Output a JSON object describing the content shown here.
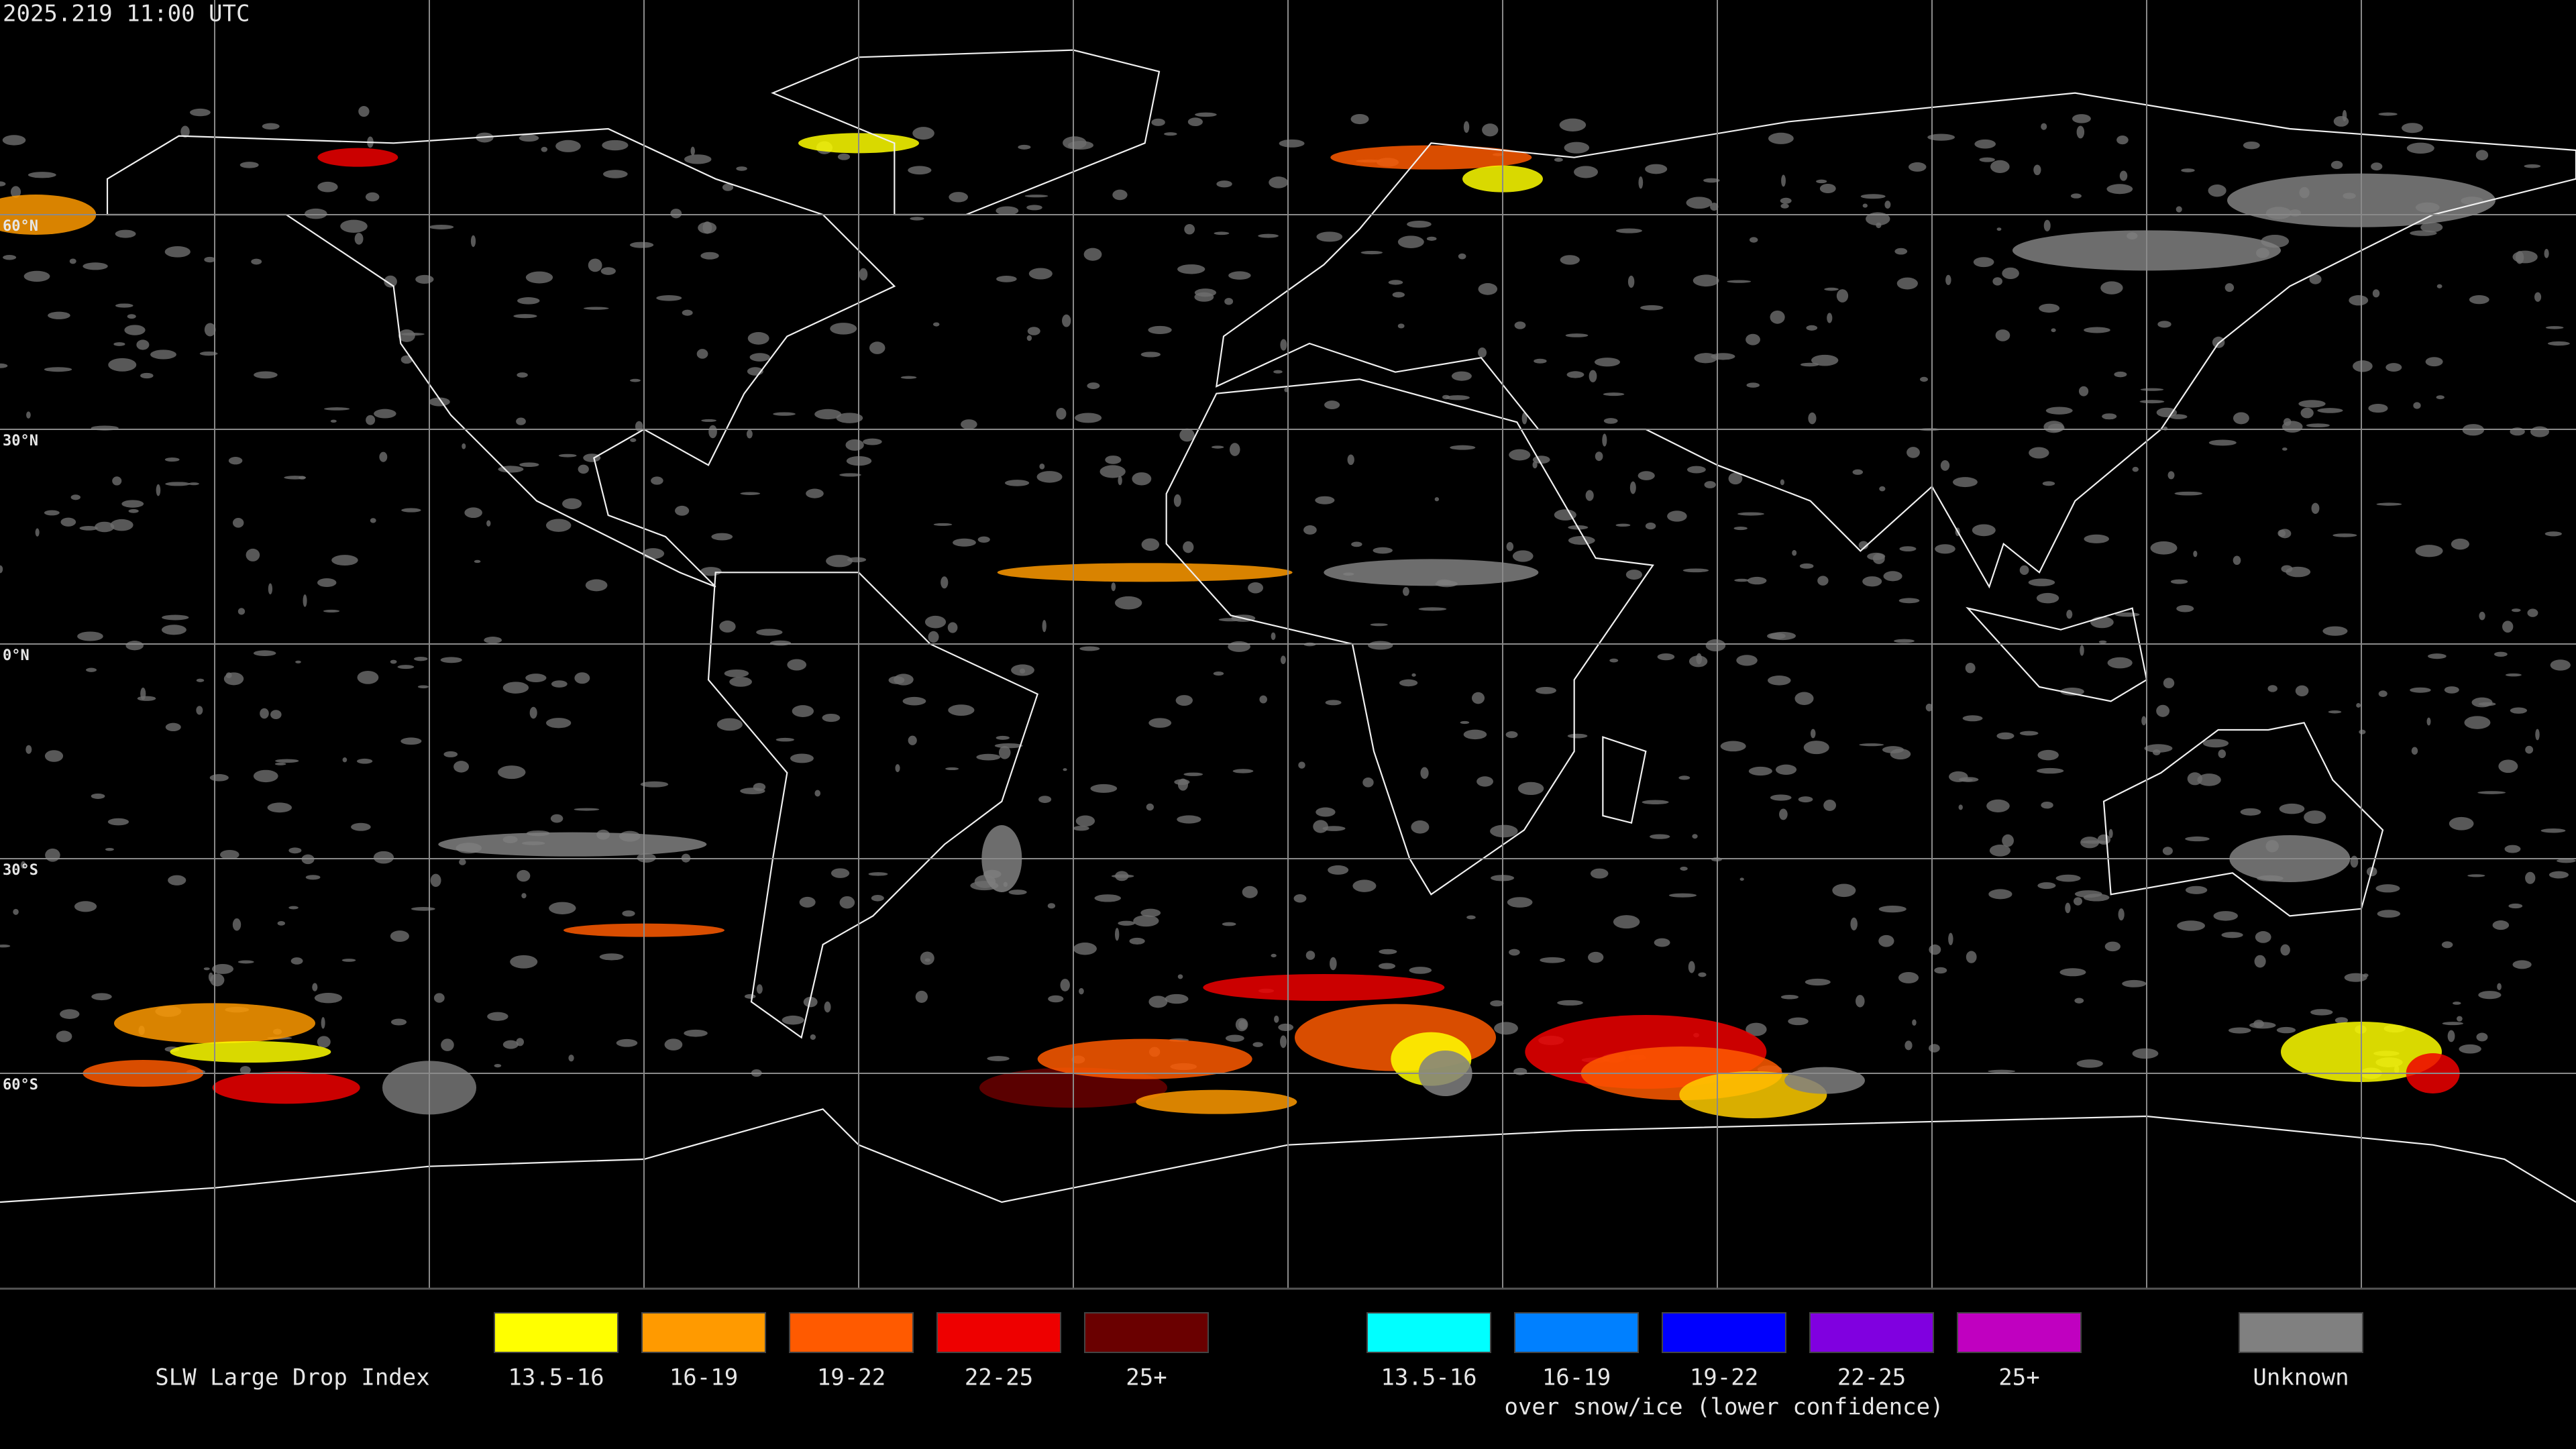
{
  "timestamp": "2025.219 11:00 UTC",
  "latitude_labels": [
    "60°N",
    "30°N",
    "0°N",
    "30°S",
    "60°S"
  ],
  "legend": {
    "title": "SLW Large Drop Index",
    "groups": [
      {
        "items": [
          {
            "label": "13.5-16",
            "color": "#ffff00"
          },
          {
            "label": "16-19",
            "color": "#ff9a00"
          },
          {
            "label": "19-22",
            "color": "#ff5a00"
          },
          {
            "label": "22-25",
            "color": "#ee0000"
          },
          {
            "label": "25+",
            "color": "#6a0000"
          }
        ]
      },
      {
        "items": [
          {
            "label": "13.5-16",
            "color": "#00ffff"
          },
          {
            "label": "16-19",
            "color": "#0080ff"
          },
          {
            "label": "19-22",
            "color": "#0000ff"
          },
          {
            "label": "22-25",
            "color": "#8000e0"
          },
          {
            "label": "25+",
            "color": "#c000c0"
          }
        ],
        "caption": "over snow/ice (lower confidence)"
      }
    ],
    "unknown": {
      "label": "Unknown",
      "color": "#808080"
    }
  }
}
